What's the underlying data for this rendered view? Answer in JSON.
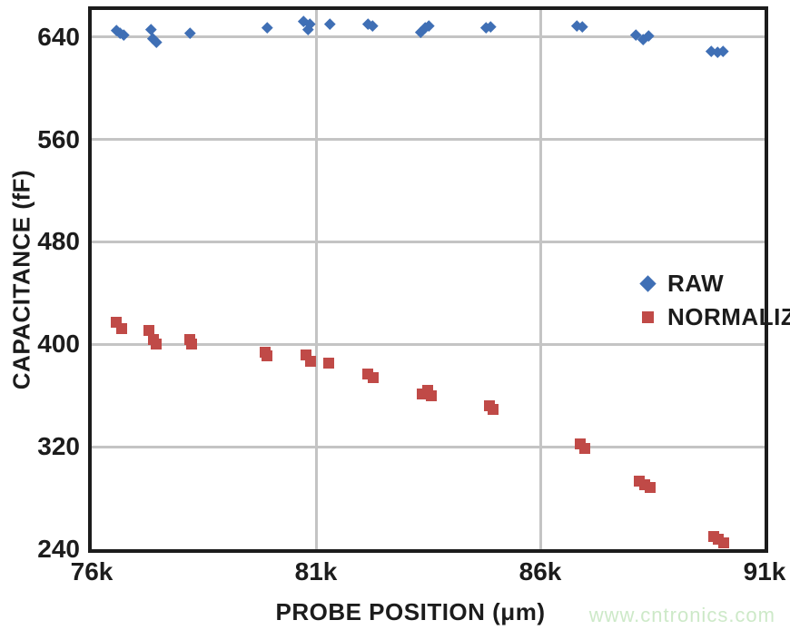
{
  "chart_data": {
    "type": "scatter",
    "title": "",
    "xlabel": "PROBE POSITION (μm)",
    "ylabel": "CAPACITANCE (fF)",
    "xlim": [
      76000,
      91000
    ],
    "ylim": [
      240,
      661
    ],
    "grid": true,
    "x_ticks": [
      {
        "value": 76000,
        "label": "76k"
      },
      {
        "value": 81000,
        "label": "81k"
      },
      {
        "value": 86000,
        "label": "86k"
      },
      {
        "value": 91000,
        "label": "91k"
      }
    ],
    "y_ticks": [
      {
        "value": 640,
        "label": "640"
      },
      {
        "value": 560,
        "label": "560"
      },
      {
        "value": 480,
        "label": "480"
      },
      {
        "value": 400,
        "label": "400"
      },
      {
        "value": 320,
        "label": "320"
      },
      {
        "value": 240,
        "label": "240"
      }
    ],
    "x_gridlines": [
      81000,
      86000
    ],
    "y_gridlines": [
      640,
      560,
      480,
      400,
      320
    ],
    "grid_color": "#c4c4c4",
    "axis_color": "#1c1c1c",
    "legend_position": "inside-middle-right",
    "series": [
      {
        "name": "RAW",
        "marker": "diamond",
        "color": "#3f6fb5",
        "marker_size": 11,
        "points": [
          [
            76550,
            645
          ],
          [
            76640,
            643
          ],
          [
            76710,
            642
          ],
          [
            77330,
            646
          ],
          [
            77360,
            639
          ],
          [
            77440,
            636
          ],
          [
            78200,
            643
          ],
          [
            79920,
            647
          ],
          [
            80730,
            652
          ],
          [
            80820,
            646
          ],
          [
            80870,
            650
          ],
          [
            81300,
            650
          ],
          [
            82150,
            650
          ],
          [
            82260,
            649
          ],
          [
            83340,
            644
          ],
          [
            83430,
            647
          ],
          [
            83510,
            649
          ],
          [
            84790,
            647
          ],
          [
            84900,
            648
          ],
          [
            86820,
            649
          ],
          [
            86940,
            648
          ],
          [
            88130,
            642
          ],
          [
            88300,
            638
          ],
          [
            88420,
            641
          ],
          [
            89820,
            629
          ],
          [
            89950,
            628
          ],
          [
            90080,
            629
          ]
        ]
      },
      {
        "name": "NORMALIZED",
        "marker": "square",
        "color": "#c04a47",
        "marker_size": 12,
        "points": [
          [
            76550,
            417
          ],
          [
            76670,
            412
          ],
          [
            77280,
            411
          ],
          [
            77380,
            404
          ],
          [
            77430,
            400
          ],
          [
            78190,
            404
          ],
          [
            78230,
            400
          ],
          [
            79870,
            394
          ],
          [
            79900,
            391
          ],
          [
            80780,
            392
          ],
          [
            80880,
            387
          ],
          [
            81280,
            385
          ],
          [
            82160,
            377
          ],
          [
            82280,
            374
          ],
          [
            83360,
            361
          ],
          [
            83490,
            364
          ],
          [
            83570,
            360
          ],
          [
            84860,
            352
          ],
          [
            84940,
            349
          ],
          [
            86900,
            322
          ],
          [
            86990,
            319
          ],
          [
            88200,
            293
          ],
          [
            88320,
            290
          ],
          [
            88450,
            288
          ],
          [
            89870,
            250
          ],
          [
            89970,
            248
          ],
          [
            90080,
            245
          ]
        ]
      }
    ]
  },
  "watermark": {
    "text": "www.cntronics.com",
    "color": "#cde9c8"
  }
}
